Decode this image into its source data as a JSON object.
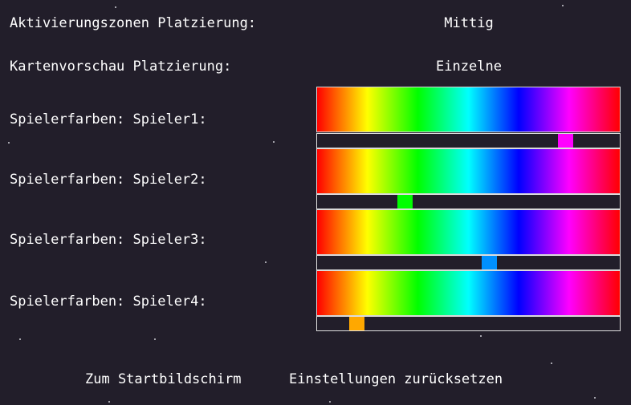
{
  "settings": {
    "activation_zone": {
      "label": "Aktivierungszonen Platzierung:",
      "value": "Mittig"
    },
    "map_preview": {
      "label": "Kartenvorschau Platzierung:",
      "value": "Einzelne"
    }
  },
  "players": [
    {
      "label": "Spielerfarben: Spieler1:",
      "color": "#ff00ff",
      "hue_fraction": 0.82
    },
    {
      "label": "Spielerfarben: Spieler2:",
      "color": "#00ff00",
      "hue_fraction": 0.29
    },
    {
      "label": "Spielerfarben: Spieler3:",
      "color": "#0090ff",
      "hue_fraction": 0.57
    },
    {
      "label": "Spielerfarben: Spieler4:",
      "color": "#ffa800",
      "hue_fraction": 0.13
    }
  ],
  "buttons": {
    "back": "Zum Startbildschirm",
    "reset": "Einstellungen zurücksetzen"
  }
}
